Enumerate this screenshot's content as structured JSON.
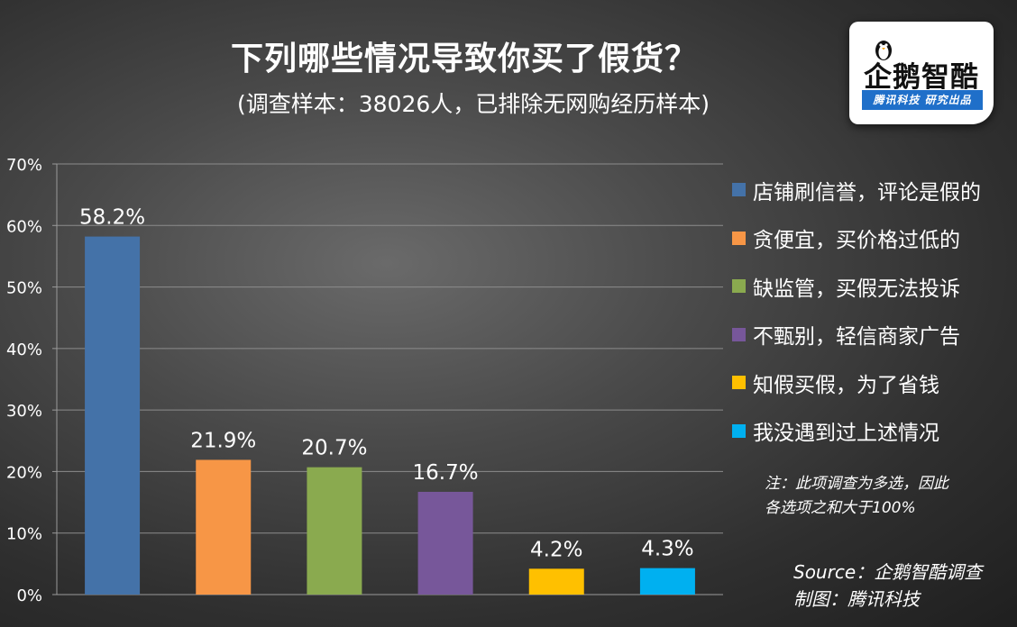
{
  "chart_data": {
    "type": "bar",
    "title": "下列哪些情况导致你买了假货？",
    "subtitle": "(调查样本：38026人，已排除无网购经历样本)",
    "categories": [
      "店铺刷信誉，评论是假的",
      "贪便宜，买价格过低的",
      "缺监管，买假无法投诉",
      "不甄别，轻信商家广告",
      "知假买假，为了省钱",
      "我没遇到过上述情况"
    ],
    "values": [
      58.2,
      21.9,
      20.7,
      16.7,
      4.2,
      4.3
    ],
    "value_labels": [
      "58.2%",
      "21.9%",
      "20.7%",
      "16.7%",
      "4.2%",
      "4.3%"
    ],
    "colors": [
      "#4472a8",
      "#f79646",
      "#8aaa4f",
      "#77579a",
      "#ffc000",
      "#00b0f0"
    ],
    "ylim": [
      0,
      70
    ],
    "yticks": [
      0,
      10,
      20,
      30,
      40,
      50,
      60,
      70
    ],
    "ytick_labels": [
      "0%",
      "10%",
      "20%",
      "30%",
      "40%",
      "50%",
      "60%",
      "70%"
    ],
    "grid": true,
    "legend_position": "right"
  },
  "logo": {
    "name": "企鹅智酷",
    "tagline": "腾讯科技  研究出品",
    "accent_color": "#1f6fc9"
  },
  "note": {
    "line1": "注：此项调查为多选，因此",
    "line2": "各选项之和大于100%"
  },
  "source": {
    "line1": "Source：企鹅智酷调查",
    "line2": "制图：腾讯科技"
  }
}
